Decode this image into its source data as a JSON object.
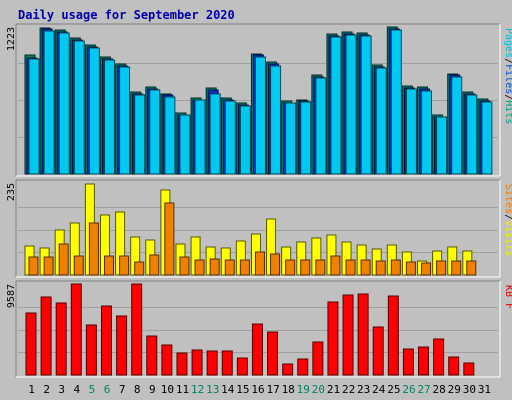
{
  "chart_data": {
    "type": "bar",
    "title": "Daily usage for September 2020",
    "categories": [
      "1",
      "2",
      "3",
      "4",
      "5",
      "6",
      "7",
      "8",
      "9",
      "10",
      "11",
      "12",
      "13",
      "14",
      "15",
      "16",
      "17",
      "18",
      "19",
      "20",
      "21",
      "22",
      "23",
      "24",
      "25",
      "26",
      "27",
      "28",
      "29",
      "30",
      "31"
    ],
    "weekend_days": [
      "5",
      "6",
      "12",
      "13",
      "19",
      "20",
      "26",
      "27"
    ],
    "panels": [
      {
        "id": "hits",
        "ymax_label": "1223",
        "ymax": 1223,
        "legend": [
          "Pages",
          "/",
          "Files",
          "/",
          "Hits"
        ],
        "legend_colors": [
          "#00c0e0",
          "#000000",
          "#0050d0",
          "#000000",
          "#00a080"
        ],
        "series": [
          {
            "name": "Hits",
            "color": "#00806f",
            "values": [
              980,
              1210,
              1190,
              1120,
              1065,
              965,
              910,
              680,
              720,
              665,
              505,
              630,
              710,
              630,
              585,
              995,
              925,
              605,
              615,
              820,
              1155,
              1175,
              1165,
              900,
              1215,
              725,
              715,
              490,
              830,
              680,
              620
            ]
          },
          {
            "name": "Files",
            "color": "#0030c0",
            "values": [
              960,
              1195,
              1175,
              1105,
              1050,
              950,
              895,
              665,
              705,
              650,
              490,
              615,
              695,
              615,
              570,
              980,
              910,
              590,
              600,
              805,
              1140,
              1160,
              1150,
              885,
              1200,
              710,
              700,
              475,
              815,
              665,
              605
            ]
          },
          {
            "name": "Pages",
            "color": "#00c8f0",
            "values": [
              950,
              1185,
              1165,
              1095,
              1040,
              940,
              885,
              655,
              695,
              640,
              485,
              610,
              660,
              605,
              565,
              965,
              895,
              585,
              595,
              795,
              1130,
              1150,
              1140,
              875,
              1190,
              700,
              690,
              470,
              805,
              655,
              595
            ]
          }
        ]
      },
      {
        "id": "visits",
        "ymax_label": "235",
        "ymax": 235,
        "legend": [
          "Sites",
          "/",
          "Visits"
        ],
        "legend_colors": [
          "#f07800",
          "#000000",
          "#f0f000"
        ],
        "series": [
          {
            "name": "Visits",
            "color": "#ffff00",
            "values": [
              75,
              70,
              115,
              135,
              235,
              155,
              162,
              98,
              90,
              220,
              80,
              98,
              73,
              70,
              88,
              105,
              145,
              72,
              85,
              95,
              103,
              85,
              77,
              67,
              78,
              60,
              35,
              63,
              72,
              61,
              0
            ]
          },
          {
            "name": "Sites",
            "color": "#f08000",
            "values": [
              46,
              46,
              81,
              48,
              134,
              50,
              48,
              34,
              52,
              185,
              46,
              40,
              42,
              40,
              40,
              59,
              53,
              38,
              39,
              38,
              48,
              40,
              40,
              36,
              40,
              33,
              32,
              35,
              36,
              36,
              0
            ]
          }
        ]
      },
      {
        "id": "kbytes",
        "ymax_label": "9587",
        "ymax": 9587,
        "legend": [
          "KB F"
        ],
        "legend_colors": [
          "#e00000"
        ],
        "series": [
          {
            "name": "KB F",
            "color": "#ff0000",
            "values": [
              6500,
              8200,
              7600,
              9587,
              5300,
              7250,
              6200,
              9587,
              4100,
              3200,
              2300,
              2650,
              2500,
              2500,
              1750,
              5350,
              4550,
              1200,
              1700,
              3450,
              7700,
              8400,
              8500,
              5100,
              8300,
              2700,
              2900,
              3800,
              1880,
              1270,
              0
            ]
          }
        ]
      }
    ]
  },
  "colors": {
    "background": "#c0c0c0",
    "title": "#0000aa",
    "weekend_label": "#008060",
    "weekday_label": "#000000"
  }
}
